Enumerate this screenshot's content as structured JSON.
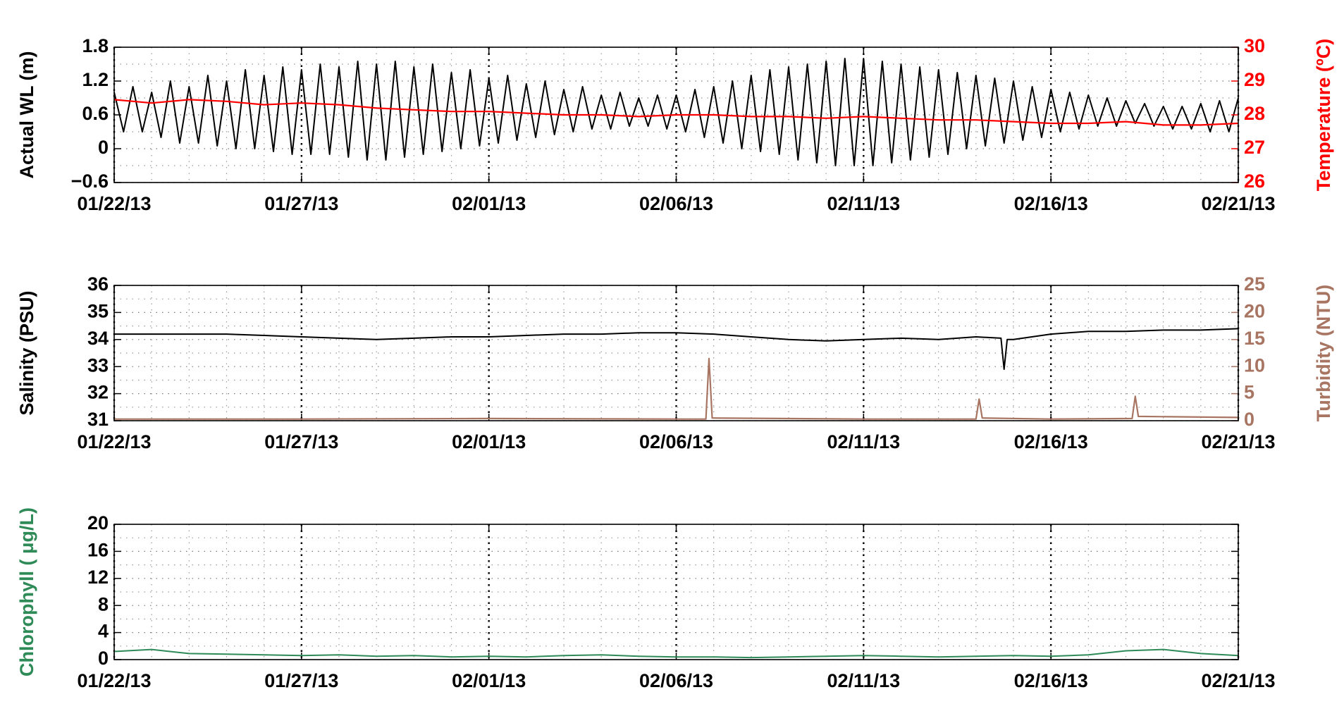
{
  "chart_data": [
    {
      "type": "line",
      "ylabel": "Actual WL (m)",
      "y2label": "Temperature (ºC)",
      "xlim": [
        "2013-01-22 00:00",
        "2013-02-21 00:00"
      ],
      "xticks": [
        {
          "value": "2013-01-22 00:00",
          "label": "01/22/13"
        },
        {
          "value": "2013-01-27 00:00",
          "label": "01/27/13"
        },
        {
          "value": "2013-02-01 00:00",
          "label": "02/01/13"
        },
        {
          "value": "2013-02-06 00:00",
          "label": "02/06/13"
        },
        {
          "value": "2013-02-11 00:00",
          "label": "02/11/13"
        },
        {
          "value": "2013-02-16 00:00",
          "label": "02/16/13"
        },
        {
          "value": "2013-02-21 00:00",
          "label": "02/21/13"
        }
      ],
      "ylim": [
        -0.6,
        1.8
      ],
      "yticks": [
        {
          "value": -0.6,
          "label": "−0.6"
        },
        0,
        0.6,
        1.2,
        1.8
      ],
      "y2lim": [
        26,
        30
      ],
      "y2ticks": [
        26,
        27,
        28,
        29,
        30
      ],
      "grid": true,
      "minor_grid": true,
      "series": [
        {
          "color": "#000000",
          "x": [
            "2013-01-22 00:00",
            "2013-01-22 06:00",
            "2013-01-22 12:00",
            "2013-01-22 18:00",
            "2013-01-23 00:00",
            "2013-01-23 06:00",
            "2013-01-23 12:00",
            "2013-01-23 18:00",
            "2013-01-24 00:00",
            "2013-01-24 06:00",
            "2013-01-24 12:00",
            "2013-01-24 18:00",
            "2013-01-25 00:00",
            "2013-01-25 06:00",
            "2013-01-25 12:00",
            "2013-01-25 18:00",
            "2013-01-26 00:00",
            "2013-01-26 06:00",
            "2013-01-26 12:00",
            "2013-01-26 18:00",
            "2013-01-27 00:00",
            "2013-01-27 06:00",
            "2013-01-27 12:00",
            "2013-01-27 18:00",
            "2013-01-28 00:00",
            "2013-01-28 06:00",
            "2013-01-28 12:00",
            "2013-01-28 18:00",
            "2013-01-29 00:00",
            "2013-01-29 06:00",
            "2013-01-29 12:00",
            "2013-01-29 18:00",
            "2013-01-30 00:00",
            "2013-01-30 06:00",
            "2013-01-30 12:00",
            "2013-01-30 18:00",
            "2013-01-31 00:00",
            "2013-01-31 06:00",
            "2013-01-31 12:00",
            "2013-01-31 18:00",
            "2013-02-01 00:00",
            "2013-02-01 06:00",
            "2013-02-01 12:00",
            "2013-02-01 18:00",
            "2013-02-02 00:00",
            "2013-02-02 06:00",
            "2013-02-02 12:00",
            "2013-02-02 18:00",
            "2013-02-03 00:00",
            "2013-02-03 06:00",
            "2013-02-03 12:00",
            "2013-02-03 18:00",
            "2013-02-04 00:00",
            "2013-02-04 06:00",
            "2013-02-04 12:00",
            "2013-02-04 18:00",
            "2013-02-05 00:00",
            "2013-02-05 06:00",
            "2013-02-05 12:00",
            "2013-02-05 18:00",
            "2013-02-06 00:00",
            "2013-02-06 06:00",
            "2013-02-06 12:00",
            "2013-02-06 18:00",
            "2013-02-07 00:00",
            "2013-02-07 06:00",
            "2013-02-07 12:00",
            "2013-02-07 18:00",
            "2013-02-08 00:00",
            "2013-02-08 06:00",
            "2013-02-08 12:00",
            "2013-02-08 18:00",
            "2013-02-09 00:00",
            "2013-02-09 06:00",
            "2013-02-09 12:00",
            "2013-02-09 18:00",
            "2013-02-10 00:00",
            "2013-02-10 06:00",
            "2013-02-10 12:00",
            "2013-02-10 18:00",
            "2013-02-11 00:00",
            "2013-02-11 06:00",
            "2013-02-11 12:00",
            "2013-02-11 18:00",
            "2013-02-12 00:00",
            "2013-02-12 06:00",
            "2013-02-12 12:00",
            "2013-02-12 18:00",
            "2013-02-13 00:00",
            "2013-02-13 06:00",
            "2013-02-13 12:00",
            "2013-02-13 18:00",
            "2013-02-14 00:00",
            "2013-02-14 06:00",
            "2013-02-14 12:00",
            "2013-02-14 18:00",
            "2013-02-15 00:00",
            "2013-02-15 06:00",
            "2013-02-15 12:00",
            "2013-02-15 18:00",
            "2013-02-16 00:00",
            "2013-02-16 06:00",
            "2013-02-16 12:00",
            "2013-02-16 18:00",
            "2013-02-17 00:00",
            "2013-02-17 06:00",
            "2013-02-17 12:00",
            "2013-02-17 18:00",
            "2013-02-18 00:00",
            "2013-02-18 06:00",
            "2013-02-18 12:00",
            "2013-02-18 18:00",
            "2013-02-19 00:00",
            "2013-02-19 06:00",
            "2013-02-19 12:00",
            "2013-02-19 18:00",
            "2013-02-20 00:00",
            "2013-02-20 06:00",
            "2013-02-20 12:00",
            "2013-02-20 18:00",
            "2013-02-21 00:00"
          ],
          "values": [
            1.0,
            0.3,
            1.1,
            0.3,
            1.0,
            0.2,
            1.2,
            0.1,
            1.1,
            0.1,
            1.3,
            0.05,
            1.2,
            0.0,
            1.4,
            0.0,
            1.3,
            -0.05,
            1.45,
            -0.1,
            1.4,
            -0.1,
            1.5,
            -0.1,
            1.45,
            -0.15,
            1.55,
            -0.2,
            1.5,
            -0.2,
            1.55,
            -0.15,
            1.45,
            -0.1,
            1.5,
            -0.05,
            1.35,
            0.0,
            1.4,
            0.05,
            1.25,
            0.1,
            1.3,
            0.15,
            1.15,
            0.2,
            1.2,
            0.25,
            1.05,
            0.3,
            1.1,
            0.35,
            0.95,
            0.35,
            1.0,
            0.4,
            0.9,
            0.4,
            0.95,
            0.35,
            0.95,
            0.3,
            1.05,
            0.2,
            1.1,
            0.1,
            1.2,
            0.0,
            1.3,
            -0.05,
            1.4,
            -0.1,
            1.45,
            -0.2,
            1.5,
            -0.25,
            1.55,
            -0.3,
            1.6,
            -0.3,
            1.6,
            -0.3,
            1.55,
            -0.25,
            1.5,
            -0.2,
            1.45,
            -0.15,
            1.4,
            -0.1,
            1.35,
            0.0,
            1.3,
            0.05,
            1.25,
            0.1,
            1.2,
            0.15,
            1.1,
            0.2,
            1.05,
            0.3,
            1.0,
            0.35,
            0.95,
            0.4,
            0.9,
            0.4,
            0.85,
            0.45,
            0.8,
            0.4,
            0.75,
            0.35,
            0.75,
            0.35,
            0.8,
            0.3,
            0.85,
            0.3,
            0.9
          ]
        },
        {
          "color": "#ff0000",
          "axis": "y2",
          "x": [
            "2013-01-22 00:00",
            "2013-01-23 00:00",
            "2013-01-24 00:00",
            "2013-01-25 00:00",
            "2013-01-26 00:00",
            "2013-01-27 00:00",
            "2013-01-28 00:00",
            "2013-01-29 00:00",
            "2013-01-30 00:00",
            "2013-01-31 00:00",
            "2013-02-01 00:00",
            "2013-02-02 00:00",
            "2013-02-03 00:00",
            "2013-02-04 00:00",
            "2013-02-05 00:00",
            "2013-02-06 00:00",
            "2013-02-07 00:00",
            "2013-02-08 00:00",
            "2013-02-09 00:00",
            "2013-02-10 00:00",
            "2013-02-11 00:00",
            "2013-02-12 00:00",
            "2013-02-13 00:00",
            "2013-02-14 00:00",
            "2013-02-15 00:00",
            "2013-02-16 00:00",
            "2013-02-17 00:00",
            "2013-02-18 00:00",
            "2013-02-19 00:00",
            "2013-02-20 00:00",
            "2013-02-21 00:00"
          ],
          "values": [
            28.45,
            28.35,
            28.45,
            28.4,
            28.3,
            28.35,
            28.3,
            28.2,
            28.15,
            28.1,
            28.1,
            28.05,
            28.0,
            28.0,
            27.95,
            28.0,
            28.0,
            27.95,
            27.95,
            27.9,
            27.95,
            27.9,
            27.85,
            27.85,
            27.8,
            27.75,
            27.75,
            27.8,
            27.7,
            27.7,
            27.75
          ]
        }
      ]
    },
    {
      "type": "line",
      "ylabel": "Salinity (PSU)",
      "y2label": "Turbidity (NTU)",
      "xlim": [
        "2013-01-22 00:00",
        "2013-02-21 00:00"
      ],
      "xticks": [
        {
          "value": "2013-01-22 00:00",
          "label": "01/22/13"
        },
        {
          "value": "2013-01-27 00:00",
          "label": "01/27/13"
        },
        {
          "value": "2013-02-01 00:00",
          "label": "02/01/13"
        },
        {
          "value": "2013-02-06 00:00",
          "label": "02/06/13"
        },
        {
          "value": "2013-02-11 00:00",
          "label": "02/11/13"
        },
        {
          "value": "2013-02-16 00:00",
          "label": "02/16/13"
        },
        {
          "value": "2013-02-21 00:00",
          "label": "02/21/13"
        }
      ],
      "ylim": [
        31,
        36
      ],
      "yticks": [
        31,
        32,
        33,
        34,
        35,
        36
      ],
      "y2lim": [
        0,
        25
      ],
      "y2ticks": [
        0,
        5,
        10,
        15,
        20,
        25
      ],
      "grid": true,
      "minor_grid": true,
      "series": [
        {
          "color": "#000000",
          "x": [
            "2013-01-22 00:00",
            "2013-01-23 00:00",
            "2013-01-24 00:00",
            "2013-01-25 00:00",
            "2013-01-26 00:00",
            "2013-01-27 00:00",
            "2013-01-28 00:00",
            "2013-01-29 00:00",
            "2013-01-30 00:00",
            "2013-01-31 00:00",
            "2013-02-01 00:00",
            "2013-02-02 00:00",
            "2013-02-03 00:00",
            "2013-02-04 00:00",
            "2013-02-05 00:00",
            "2013-02-06 00:00",
            "2013-02-07 00:00",
            "2013-02-08 00:00",
            "2013-02-09 00:00",
            "2013-02-10 00:00",
            "2013-02-11 00:00",
            "2013-02-12 00:00",
            "2013-02-13 00:00",
            "2013-02-14 00:00",
            "2013-02-14 16:00",
            "2013-02-14 18:00",
            "2013-02-14 20:00",
            "2013-02-15 00:00",
            "2013-02-16 00:00",
            "2013-02-17 00:00",
            "2013-02-18 00:00",
            "2013-02-19 00:00",
            "2013-02-20 00:00",
            "2013-02-21 00:00"
          ],
          "values": [
            34.2,
            34.2,
            34.2,
            34.2,
            34.15,
            34.1,
            34.05,
            34.0,
            34.05,
            34.1,
            34.1,
            34.15,
            34.2,
            34.2,
            34.25,
            34.25,
            34.2,
            34.1,
            34.0,
            33.95,
            34.0,
            34.05,
            34.0,
            34.1,
            34.05,
            32.9,
            34.0,
            34.0,
            34.2,
            34.3,
            34.3,
            34.35,
            34.35,
            34.4
          ]
        },
        {
          "color": "#a87562",
          "axis": "y2",
          "x": [
            "2013-01-22 00:00",
            "2013-01-27 00:00",
            "2013-02-01 00:00",
            "2013-02-06 00:00",
            "2013-02-06 19:00",
            "2013-02-06 21:00",
            "2013-02-06 23:00",
            "2013-02-11 00:00",
            "2013-02-14 00:00",
            "2013-02-14 02:00",
            "2013-02-14 04:00",
            "2013-02-16 00:00",
            "2013-02-18 04:00",
            "2013-02-18 06:00",
            "2013-02-18 08:00",
            "2013-02-21 00:00"
          ],
          "values": [
            0.3,
            0.3,
            0.4,
            0.3,
            0.3,
            11.5,
            0.5,
            0.3,
            0.3,
            4,
            0.5,
            0.3,
            0.4,
            4.5,
            0.8,
            0.6
          ]
        }
      ]
    },
    {
      "type": "line",
      "ylabel": "Chlorophyll ( μg/L)",
      "xlim": [
        "2013-01-22 00:00",
        "2013-02-21 00:00"
      ],
      "xticks": [
        {
          "value": "2013-01-22 00:00",
          "label": "01/22/13"
        },
        {
          "value": "2013-01-27 00:00",
          "label": "01/27/13"
        },
        {
          "value": "2013-02-01 00:00",
          "label": "02/01/13"
        },
        {
          "value": "2013-02-06 00:00",
          "label": "02/06/13"
        },
        {
          "value": "2013-02-11 00:00",
          "label": "02/11/13"
        },
        {
          "value": "2013-02-16 00:00",
          "label": "02/16/13"
        },
        {
          "value": "2013-02-21 00:00",
          "label": "02/21/13"
        }
      ],
      "ylim": [
        0,
        20
      ],
      "yticks": [
        0,
        4,
        8,
        12,
        16,
        20
      ],
      "grid": true,
      "minor_grid": true,
      "series": [
        {
          "color": "#2e8b57",
          "x": [
            "2013-01-22 00:00",
            "2013-01-23 00:00",
            "2013-01-24 00:00",
            "2013-01-25 00:00",
            "2013-01-26 00:00",
            "2013-01-27 00:00",
            "2013-01-28 00:00",
            "2013-01-29 00:00",
            "2013-01-30 00:00",
            "2013-01-31 00:00",
            "2013-02-01 00:00",
            "2013-02-02 00:00",
            "2013-02-03 00:00",
            "2013-02-04 00:00",
            "2013-02-05 00:00",
            "2013-02-06 00:00",
            "2013-02-07 00:00",
            "2013-02-08 00:00",
            "2013-02-09 00:00",
            "2013-02-10 00:00",
            "2013-02-11 00:00",
            "2013-02-12 00:00",
            "2013-02-13 00:00",
            "2013-02-14 00:00",
            "2013-02-15 00:00",
            "2013-02-16 00:00",
            "2013-02-17 00:00",
            "2013-02-18 00:00",
            "2013-02-19 00:00",
            "2013-02-20 00:00",
            "2013-02-21 00:00"
          ],
          "values": [
            1.2,
            1.5,
            0.9,
            0.8,
            0.7,
            0.6,
            0.7,
            0.5,
            0.6,
            0.4,
            0.5,
            0.4,
            0.6,
            0.7,
            0.5,
            0.4,
            0.4,
            0.3,
            0.4,
            0.5,
            0.6,
            0.5,
            0.4,
            0.5,
            0.6,
            0.5,
            0.7,
            1.3,
            1.5,
            0.9,
            0.6
          ]
        }
      ]
    }
  ]
}
